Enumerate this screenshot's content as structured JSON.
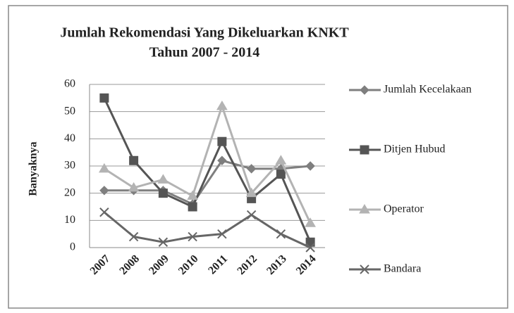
{
  "chart_data": {
    "type": "line",
    "title": "Jumlah Rekomendasi Yang Dikeluarkan KNKT",
    "subtitle": "Tahun 2007 - 2014",
    "y_label": "Banyaknya",
    "categories": [
      "2007",
      "2008",
      "2009",
      "2010",
      "2011",
      "2012",
      "2013",
      "2014"
    ],
    "series": [
      {
        "name": "Jumlah Kecelakaan",
        "color": "#7f7f7f",
        "marker": "diamond",
        "values": [
          21,
          21,
          21,
          16,
          32,
          29,
          29,
          30
        ]
      },
      {
        "name": "Ditjen Hubud",
        "color": "#555555",
        "marker": "square",
        "values": [
          55,
          32,
          20,
          15,
          39,
          18,
          27,
          2
        ]
      },
      {
        "name": "Operator",
        "color": "#b3b3b3",
        "marker": "triangle",
        "values": [
          29,
          22,
          25,
          19,
          52,
          20,
          32,
          9
        ]
      },
      {
        "name": "Bandara",
        "color": "#666666",
        "marker": "x",
        "values": [
          13,
          4,
          2,
          4,
          5,
          12,
          5,
          0
        ]
      }
    ],
    "ylim": [
      0,
      60
    ],
    "yticks": [
      0,
      10,
      20,
      30,
      40,
      50,
      60
    ],
    "grid": true,
    "legend": "right"
  }
}
